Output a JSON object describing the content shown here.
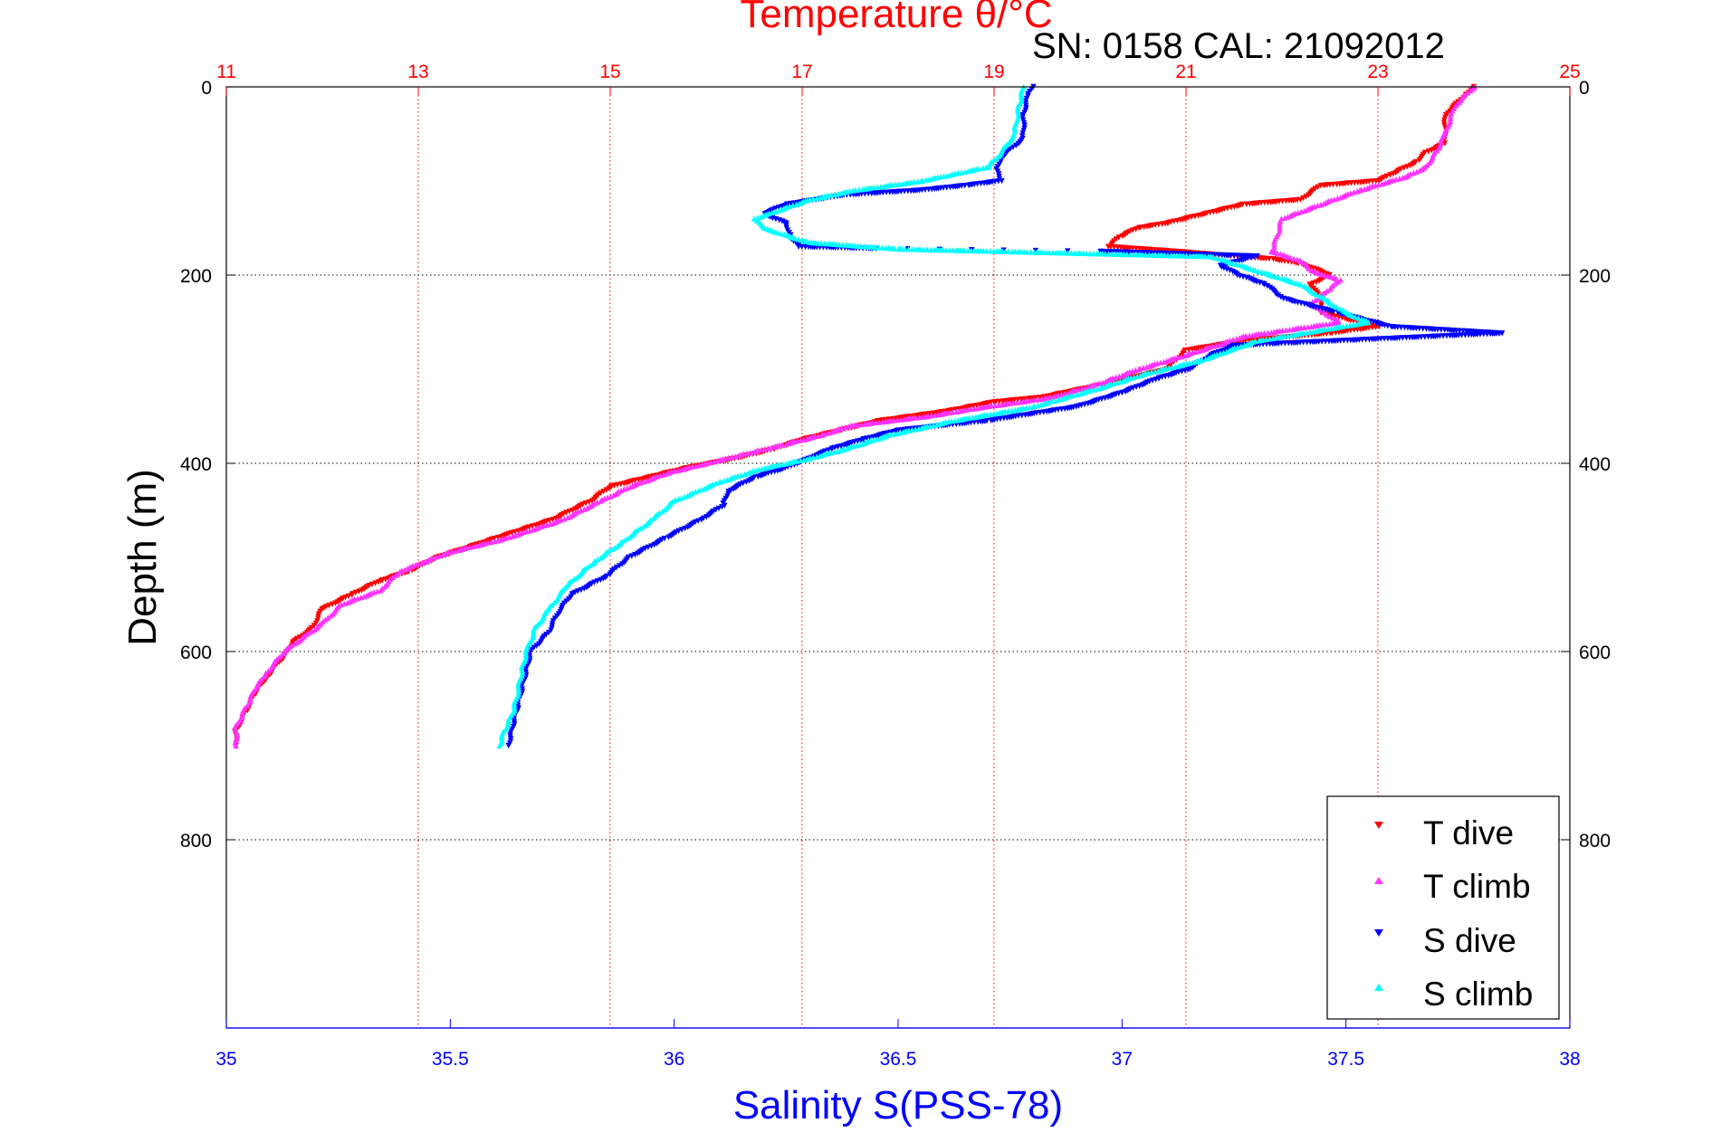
{
  "chart_data": {
    "type": "scatter",
    "title": "Temperature θ/°C",
    "subtitle": "SN: 0158  CAL: 21092012",
    "xlabel": "Salinity S(PSS-78)",
    "ylabel": "Depth (m)",
    "x_temperature": {
      "label": "Temperature θ/°C",
      "lim": [
        11,
        25
      ],
      "ticks": [
        11,
        13,
        15,
        17,
        19,
        21,
        23,
        25
      ],
      "color": "#ff0000"
    },
    "x_salinity": {
      "label": "Salinity S(PSS-78)",
      "lim": [
        35,
        38
      ],
      "ticks": [
        35,
        35.5,
        36,
        36.5,
        37,
        37.5,
        38
      ],
      "color": "#0000ff"
    },
    "ylim": [
      0,
      1000
    ],
    "y_ticks": [
      0,
      200,
      400,
      600,
      800
    ],
    "y_reversed": true,
    "grid": true,
    "legend_position": "bottom-right",
    "series": [
      {
        "name": "T dive",
        "axis": "temperature",
        "color": "#ff0000",
        "points": [
          [
            24.0,
            0
          ],
          [
            23.9,
            10
          ],
          [
            23.7,
            30
          ],
          [
            23.7,
            60
          ],
          [
            23.5,
            70
          ],
          [
            23.4,
            80
          ],
          [
            23.2,
            90
          ],
          [
            23.0,
            100
          ],
          [
            22.4,
            105
          ],
          [
            22.2,
            120
          ],
          [
            21.6,
            125
          ],
          [
            21.2,
            135
          ],
          [
            20.8,
            145
          ],
          [
            20.5,
            150
          ],
          [
            20.3,
            160
          ],
          [
            20.2,
            170
          ],
          [
            20.9,
            175
          ],
          [
            21.5,
            180
          ],
          [
            21.9,
            183
          ],
          [
            22.2,
            188
          ],
          [
            22.5,
            200
          ],
          [
            22.3,
            210
          ],
          [
            22.4,
            225
          ],
          [
            22.4,
            240
          ],
          [
            23.0,
            255
          ],
          [
            22.5,
            262
          ],
          [
            21.6,
            270
          ],
          [
            21.0,
            280
          ],
          [
            20.8,
            300
          ],
          [
            20.2,
            315
          ],
          [
            19.5,
            330
          ],
          [
            19.0,
            335
          ],
          [
            18.5,
            345
          ],
          [
            17.8,
            355
          ],
          [
            17.4,
            365
          ],
          [
            17.0,
            375
          ],
          [
            16.7,
            385
          ],
          [
            16.3,
            395
          ],
          [
            15.8,
            405
          ],
          [
            15.4,
            415
          ],
          [
            15.0,
            425
          ],
          [
            14.8,
            440
          ],
          [
            14.4,
            460
          ],
          [
            13.8,
            480
          ],
          [
            13.2,
            500
          ],
          [
            12.9,
            515
          ],
          [
            12.6,
            525
          ],
          [
            12.3,
            540
          ],
          [
            12.0,
            555
          ],
          [
            11.9,
            575
          ],
          [
            11.7,
            590
          ],
          [
            11.6,
            605
          ],
          [
            11.4,
            630
          ],
          [
            11.3,
            645
          ],
          [
            11.2,
            665
          ],
          [
            11.1,
            685
          ],
          [
            11.1,
            700
          ]
        ]
      },
      {
        "name": "T climb",
        "axis": "temperature",
        "color": "#ff33ff",
        "points": [
          [
            24.0,
            0
          ],
          [
            23.8,
            20
          ],
          [
            23.7,
            50
          ],
          [
            23.6,
            70
          ],
          [
            23.5,
            85
          ],
          [
            23.3,
            95
          ],
          [
            22.8,
            110
          ],
          [
            22.4,
            125
          ],
          [
            22.0,
            140
          ],
          [
            21.9,
            175
          ],
          [
            22.2,
            185
          ],
          [
            22.3,
            195
          ],
          [
            22.6,
            205
          ],
          [
            22.5,
            215
          ],
          [
            22.3,
            230
          ],
          [
            22.6,
            250
          ],
          [
            21.6,
            265
          ],
          [
            21.0,
            285
          ],
          [
            20.5,
            300
          ],
          [
            20.1,
            315
          ],
          [
            19.6,
            330
          ],
          [
            18.9,
            340
          ],
          [
            18.3,
            350
          ],
          [
            17.5,
            360
          ],
          [
            17.2,
            370
          ],
          [
            16.8,
            380
          ],
          [
            16.4,
            390
          ],
          [
            16.0,
            400
          ],
          [
            15.6,
            410
          ],
          [
            15.2,
            425
          ],
          [
            14.9,
            440
          ],
          [
            14.5,
            460
          ],
          [
            13.9,
            480
          ],
          [
            13.3,
            495
          ],
          [
            12.8,
            515
          ],
          [
            12.6,
            535
          ],
          [
            12.2,
            550
          ],
          [
            12.0,
            570
          ],
          [
            11.8,
            585
          ],
          [
            11.6,
            600
          ],
          [
            11.4,
            625
          ],
          [
            11.3,
            640
          ],
          [
            11.2,
            660
          ],
          [
            11.1,
            680
          ],
          [
            11.1,
            700
          ]
        ]
      },
      {
        "name": "S dive",
        "axis": "salinity",
        "color": "#0000ff",
        "points": [
          [
            36.8,
            0
          ],
          [
            36.79,
            10
          ],
          [
            36.78,
            30
          ],
          [
            36.78,
            55
          ],
          [
            36.73,
            75
          ],
          [
            36.72,
            90
          ],
          [
            36.73,
            100
          ],
          [
            36.65,
            105
          ],
          [
            36.55,
            110
          ],
          [
            36.38,
            115
          ],
          [
            36.25,
            125
          ],
          [
            36.2,
            135
          ],
          [
            36.25,
            145
          ],
          [
            36.26,
            160
          ],
          [
            36.28,
            170
          ],
          [
            36.45,
            172
          ],
          [
            36.95,
            175
          ],
          [
            37.3,
            180
          ],
          [
            37.22,
            190
          ],
          [
            37.26,
            200
          ],
          [
            37.32,
            210
          ],
          [
            37.36,
            225
          ],
          [
            37.48,
            240
          ],
          [
            37.6,
            255
          ],
          [
            37.85,
            262
          ],
          [
            37.25,
            275
          ],
          [
            37.2,
            285
          ],
          [
            37.15,
            300
          ],
          [
            37.08,
            310
          ],
          [
            37.0,
            325
          ],
          [
            36.9,
            340
          ],
          [
            36.7,
            355
          ],
          [
            36.5,
            365
          ],
          [
            36.42,
            375
          ],
          [
            36.35,
            385
          ],
          [
            36.3,
            395
          ],
          [
            36.25,
            405
          ],
          [
            36.18,
            415
          ],
          [
            36.12,
            430
          ],
          [
            36.11,
            445
          ],
          [
            36.06,
            460
          ],
          [
            35.98,
            480
          ],
          [
            35.9,
            500
          ],
          [
            35.85,
            520
          ],
          [
            35.77,
            540
          ],
          [
            35.74,
            560
          ],
          [
            35.72,
            580
          ],
          [
            35.68,
            600
          ],
          [
            35.67,
            620
          ],
          [
            35.66,
            640
          ],
          [
            35.65,
            660
          ],
          [
            35.64,
            680
          ],
          [
            35.63,
            700
          ]
        ]
      },
      {
        "name": "S climb",
        "axis": "salinity",
        "color": "#00ffff",
        "points": [
          [
            36.78,
            0
          ],
          [
            36.77,
            20
          ],
          [
            36.76,
            50
          ],
          [
            36.73,
            70
          ],
          [
            36.7,
            85
          ],
          [
            36.55,
            100
          ],
          [
            36.4,
            110
          ],
          [
            36.3,
            120
          ],
          [
            36.18,
            140
          ],
          [
            36.2,
            150
          ],
          [
            36.3,
            165
          ],
          [
            36.5,
            172
          ],
          [
            37.2,
            180
          ],
          [
            37.3,
            195
          ],
          [
            37.4,
            210
          ],
          [
            37.45,
            225
          ],
          [
            37.5,
            240
          ],
          [
            37.55,
            250
          ],
          [
            37.3,
            270
          ],
          [
            37.18,
            290
          ],
          [
            37.05,
            305
          ],
          [
            36.95,
            320
          ],
          [
            36.8,
            340
          ],
          [
            36.62,
            355
          ],
          [
            36.48,
            370
          ],
          [
            36.38,
            385
          ],
          [
            36.3,
            395
          ],
          [
            36.2,
            405
          ],
          [
            36.1,
            420
          ],
          [
            36.0,
            440
          ],
          [
            35.95,
            460
          ],
          [
            35.88,
            485
          ],
          [
            35.82,
            505
          ],
          [
            35.76,
            530
          ],
          [
            35.72,
            555
          ],
          [
            35.69,
            575
          ],
          [
            35.67,
            600
          ],
          [
            35.66,
            620
          ],
          [
            35.65,
            645
          ],
          [
            35.64,
            665
          ],
          [
            35.62,
            685
          ],
          [
            35.61,
            700
          ]
        ]
      }
    ]
  }
}
